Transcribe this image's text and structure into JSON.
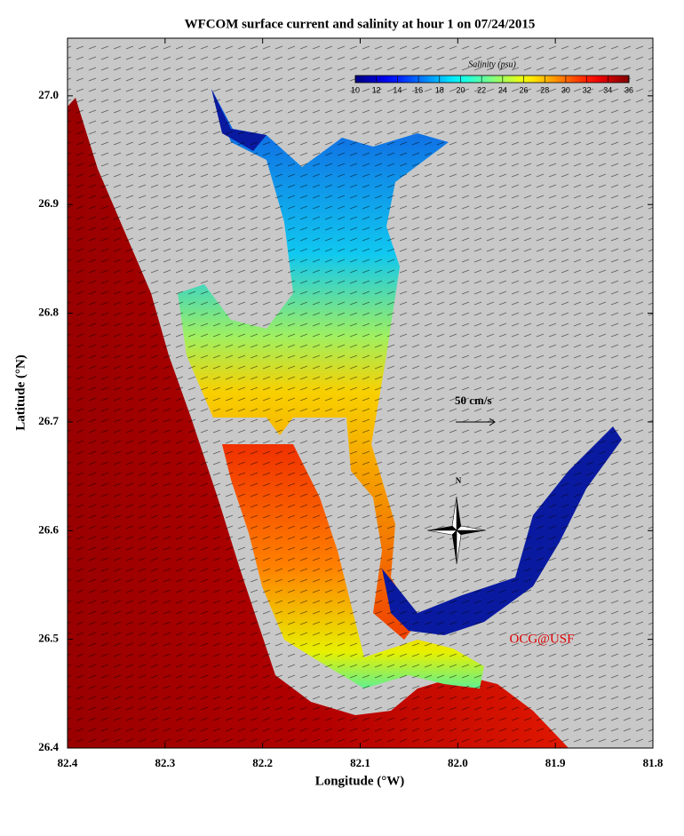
{
  "chart_data": {
    "type": "map",
    "title": "WFCOM surface current and salinity at hour 1 on 07/24/2015",
    "xlabel": "Longitude (°W)",
    "ylabel": "Latitude (°N)",
    "xlim": [
      82.4,
      81.8
    ],
    "ylim": [
      26.4,
      27.053
    ],
    "xticks": [
      82.4,
      82.3,
      82.2,
      82.1,
      {
        "value": 82,
        "label": "82.0"
      },
      81.9,
      81.8
    ],
    "yticks": [
      26.4,
      26.5,
      26.6,
      26.7,
      26.8,
      26.9,
      {
        "value": 27,
        "label": "27.0"
      }
    ],
    "colorbar": {
      "label": "Salinity (psu)",
      "lim": [
        10,
        36
      ],
      "ticks": [
        10,
        12,
        14,
        16,
        18,
        20,
        22,
        24,
        26,
        28,
        30,
        32,
        34,
        36
      ],
      "colormap": "jet"
    },
    "annotations": {
      "scale": "50 cm/s",
      "north": "N",
      "credit": "OCG@USF"
    }
  }
}
